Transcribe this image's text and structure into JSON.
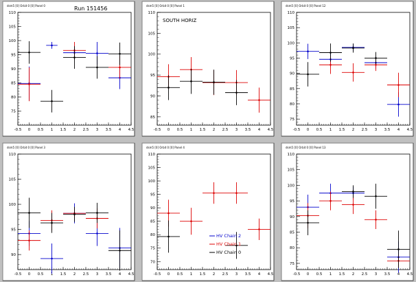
{
  "chart_data": [
    {
      "type": "scatter",
      "panel_title": "dsm5 [0] Orbit 0 [0] Panel 0",
      "title": "Run 151456",
      "xlim": [
        -0.5,
        4.5
      ],
      "ylim": [
        70,
        110
      ],
      "xticks": [
        "-0.5",
        "0",
        "0.5",
        "1",
        "1.5",
        "2",
        "2.5",
        "3",
        "3.5",
        "4",
        "4.5"
      ],
      "yticks": [
        "75",
        "80",
        "85",
        "90",
        "95",
        "100",
        "105",
        "110"
      ],
      "series": [
        {
          "color": "#0000cc",
          "points": [
            [
              0,
              84.8,
              0.5,
              6
            ],
            [
              1,
              98.3,
              0.25,
              1.2
            ],
            [
              2,
              95.7,
              0.5,
              2.5
            ],
            [
              3,
              95.5,
              0.5,
              4
            ],
            [
              4,
              86.8,
              0.5,
              4
            ]
          ]
        },
        {
          "color": "#dd0000",
          "points": [
            [
              0,
              84.5,
              0.5,
              6
            ],
            [
              2,
              96.5,
              0.5,
              3
            ],
            [
              4,
              90.5,
              0.5,
              4
            ]
          ]
        },
        {
          "color": "#000000",
          "points": [
            [
              0,
              95.8,
              0.5,
              4
            ],
            [
              1,
              78.5,
              0.5,
              4
            ],
            [
              2,
              94,
              0.5,
              4
            ],
            [
              3,
              90.5,
              0.5,
              4
            ],
            [
              4,
              95.3,
              0.5,
              4
            ]
          ]
        }
      ]
    },
    {
      "type": "scatter",
      "panel_title": "dsm5 [0] Orbit 0 [0] Panel 1",
      "title": "SOUTH HORIZ",
      "xlim": [
        -0.5,
        4.5
      ],
      "ylim": [
        83,
        110
      ],
      "xticks": [
        "-0.5",
        "0",
        "0.5",
        "1",
        "1.5",
        "2",
        "2.5",
        "3",
        "3.5",
        "4",
        "4.5"
      ],
      "yticks": [
        "85",
        "90",
        "95",
        "100",
        "105",
        "110"
      ],
      "series": [
        {
          "color": "#dd0000",
          "points": [
            [
              0,
              94.6,
              0.5,
              3
            ],
            [
              1,
              96.3,
              0.5,
              3
            ],
            [
              2,
              93.2,
              0.5,
              3
            ],
            [
              3,
              93.2,
              0.5,
              3
            ],
            [
              4,
              89,
              0.5,
              3
            ]
          ]
        },
        {
          "color": "#000000",
          "points": [
            [
              0,
              92,
              0.5,
              3
            ],
            [
              1,
              93.5,
              0.5,
              3
            ],
            [
              2,
              93.3,
              0.5,
              3
            ],
            [
              3,
              90.8,
              0.5,
              3
            ]
          ]
        }
      ]
    },
    {
      "type": "scatter",
      "panel_title": "dsm5 [0] Orbit 0 [0] Panel 12",
      "title": "",
      "xlim": [
        -0.5,
        4.5
      ],
      "ylim": [
        73,
        110
      ],
      "xticks": [
        "-0.5",
        "0",
        "0.5",
        "1",
        "1.5",
        "2",
        "2.5",
        "3",
        "3.5",
        "4",
        "4.5"
      ],
      "yticks": [
        "75",
        "80",
        "85",
        "90",
        "95",
        "100",
        "105",
        "110"
      ],
      "series": [
        {
          "color": "#0000cc",
          "points": [
            [
              0,
              97.2,
              0.5,
              2.5
            ],
            [
              1,
              94.6,
              0.5,
              2.5
            ],
            [
              2,
              98.5,
              0.5,
              1.2
            ],
            [
              3,
              93.5,
              0.5,
              2
            ],
            [
              4,
              79.8,
              0.5,
              4
            ]
          ]
        },
        {
          "color": "#dd0000",
          "points": [
            [
              1,
              92.8,
              0.5,
              3
            ],
            [
              2,
              90.3,
              0.5,
              3
            ],
            [
              3,
              92.8,
              0.5,
              2
            ],
            [
              4,
              86.2,
              0.5,
              4
            ]
          ]
        },
        {
          "color": "#000000",
          "points": [
            [
              0,
              89.7,
              0.5,
              4
            ],
            [
              1,
              96.8,
              0.5,
              3
            ],
            [
              2,
              98.3,
              0.5,
              1.5
            ],
            [
              3,
              95,
              0.5,
              2
            ]
          ]
        }
      ]
    },
    {
      "type": "scatter",
      "panel_title": "dsm5 [0] Orbit 0 [0] Panel 3",
      "title": "",
      "xlim": [
        -0.5,
        4.5
      ],
      "ylim": [
        87,
        110
      ],
      "xticks": [
        "-0.5",
        "0",
        "0.5",
        "1",
        "1.5",
        "2",
        "2.5",
        "3",
        "3.5",
        "4",
        "4.5"
      ],
      "yticks": [
        "90",
        "95",
        "100",
        "105",
        "110"
      ],
      "series": [
        {
          "color": "#0000cc",
          "points": [
            [
              0,
              94.2,
              0.5,
              2.5
            ],
            [
              1,
              89.2,
              0.5,
              3
            ],
            [
              2,
              98.2,
              0.5,
              2
            ],
            [
              3,
              94.2,
              0.5,
              2.5
            ],
            [
              4,
              91.3,
              0.5,
              4
            ]
          ]
        },
        {
          "color": "#dd0000",
          "points": [
            [
              0,
              92.8,
              0.5,
              2
            ],
            [
              1,
              96.8,
              0.5,
              2
            ],
            [
              2,
              98.2,
              0.5,
              1
            ],
            [
              3,
              97.2,
              0.5,
              2
            ]
          ]
        },
        {
          "color": "#000000",
          "points": [
            [
              0,
              98.3,
              0.5,
              3
            ],
            [
              1,
              96.3,
              0.5,
              2
            ],
            [
              2,
              98,
              0.5,
              1.5
            ],
            [
              3,
              98.3,
              0.5,
              2
            ],
            [
              4,
              90.8,
              0.5,
              4
            ]
          ]
        }
      ]
    },
    {
      "type": "scatter",
      "panel_title": "dsm5 [0] Orbit 0 [0] Panel 4",
      "title": "",
      "xlim": [
        -0.5,
        4.5
      ],
      "ylim": [
        67,
        110
      ],
      "xticks": [
        "-0.5",
        "0",
        "0.5",
        "1",
        "1.5",
        "2",
        "2.5",
        "3",
        "3.5",
        "4",
        "4.5"
      ],
      "yticks": [
        "70",
        "75",
        "80",
        "85",
        "90",
        "95",
        "100",
        "105",
        "110"
      ],
      "legend": [
        {
          "label": "HV Chain 2",
          "color": "#0000cc"
        },
        {
          "label": "HV Chain 1",
          "color": "#dd0000"
        },
        {
          "label": "HV Chain 0",
          "color": "#000000"
        }
      ],
      "series": [
        {
          "color": "#dd0000",
          "points": [
            [
              0,
              88,
              0.5,
              5
            ],
            [
              1,
              85,
              0.5,
              5
            ],
            [
              2,
              95.5,
              0.5,
              4
            ],
            [
              3,
              95.5,
              0.5,
              4
            ],
            [
              4,
              82,
              0.5,
              4
            ]
          ]
        },
        {
          "color": "#000000",
          "points": [
            [
              0,
              79.3,
              0.5,
              6
            ],
            [
              3,
              76,
              0.5,
              5
            ]
          ]
        }
      ]
    },
    {
      "type": "scatter",
      "panel_title": "dsm5 [0] Orbit 0 [0] Panel 13",
      "title": "",
      "xlim": [
        -0.5,
        4.5
      ],
      "ylim": [
        73,
        110
      ],
      "xticks": [
        "-0.5",
        "0",
        "0.5",
        "1",
        "1.5",
        "2",
        "2.5",
        "3",
        "3.5",
        "4",
        "4.5"
      ],
      "yticks": [
        "75",
        "80",
        "85",
        "90",
        "95",
        "100",
        "105",
        "110"
      ],
      "series": [
        {
          "color": "#0000cc",
          "points": [
            [
              0,
              93,
              0.5,
              4
            ],
            [
              1,
              97.5,
              0.5,
              3
            ],
            [
              2,
              97.5,
              0.5,
              2
            ],
            [
              4,
              77,
              0.5,
              5
            ]
          ]
        },
        {
          "color": "#dd0000",
          "points": [
            [
              0,
              90.3,
              0.5,
              4
            ],
            [
              1,
              95,
              0.5,
              3
            ],
            [
              2,
              93.8,
              0.5,
              3
            ],
            [
              3,
              89,
              0.5,
              3
            ],
            [
              4,
              75.8,
              0.5,
              2
            ]
          ]
        },
        {
          "color": "#000000",
          "points": [
            [
              0,
              88,
              0.5,
              4
            ],
            [
              2,
              98,
              0.5,
              2
            ],
            [
              3,
              96.5,
              0.5,
              4
            ],
            [
              4,
              79.5,
              0.5,
              6
            ]
          ]
        }
      ]
    }
  ]
}
